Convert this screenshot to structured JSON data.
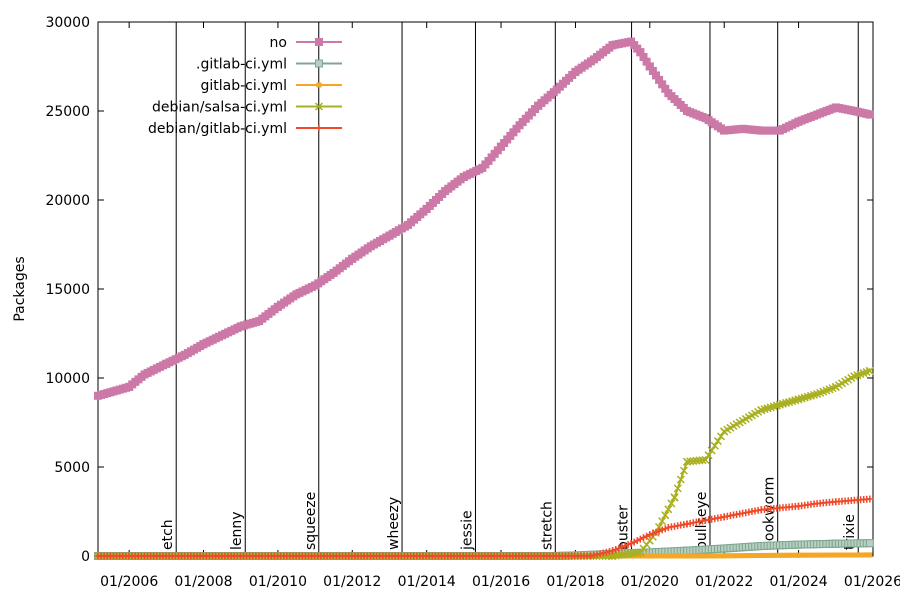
{
  "chart_data": {
    "type": "line",
    "title": "",
    "xlabel": "",
    "ylabel": "Packages",
    "xlim": [
      "2005-03-01",
      "2026-01-01"
    ],
    "ylim": [
      0,
      30000
    ],
    "x_tick_labels": [
      "01/2006",
      "01/2008",
      "01/2010",
      "01/2012",
      "01/2014",
      "01/2016",
      "01/2018",
      "01/2020",
      "01/2022",
      "01/2024",
      "01/2026"
    ],
    "y_ticks": [
      0,
      5000,
      10000,
      15000,
      20000,
      25000,
      30000
    ],
    "grid": false,
    "legend_position": "top-left",
    "releases": [
      {
        "name": "etch",
        "date": "2007-04-08"
      },
      {
        "name": "lenny",
        "date": "2009-02-14"
      },
      {
        "name": "squeeze",
        "date": "2011-02-06"
      },
      {
        "name": "wheezy",
        "date": "2013-05-04"
      },
      {
        "name": "jessie",
        "date": "2015-04-25"
      },
      {
        "name": "stretch",
        "date": "2017-06-17"
      },
      {
        "name": "buster",
        "date": "2019-07-06"
      },
      {
        "name": "bullseye",
        "date": "2021-08-14"
      },
      {
        "name": "bookworm",
        "date": "2023-06-10"
      },
      {
        "name": "trixie",
        "date": "2025-08-09"
      }
    ],
    "series": [
      {
        "name": "no",
        "color": "#cc79a7",
        "marker": "square-filled",
        "points": [
          [
            "2005-03-01",
            9000
          ],
          [
            "2005-09-01",
            9300
          ],
          [
            "2006-01-01",
            9500
          ],
          [
            "2006-06-01",
            10200
          ],
          [
            "2007-01-01",
            10800
          ],
          [
            "2007-07-01",
            11300
          ],
          [
            "2008-01-01",
            11900
          ],
          [
            "2008-07-01",
            12400
          ],
          [
            "2009-01-01",
            12900
          ],
          [
            "2009-07-01",
            13200
          ],
          [
            "2010-01-01",
            14000
          ],
          [
            "2010-07-01",
            14700
          ],
          [
            "2011-01-01",
            15200
          ],
          [
            "2011-07-01",
            15900
          ],
          [
            "2012-01-01",
            16700
          ],
          [
            "2012-07-01",
            17400
          ],
          [
            "2013-01-01",
            18000
          ],
          [
            "2013-07-01",
            18600
          ],
          [
            "2014-01-01",
            19500
          ],
          [
            "2014-07-01",
            20500
          ],
          [
            "2015-01-01",
            21300
          ],
          [
            "2015-07-01",
            21800
          ],
          [
            "2016-01-01",
            23000
          ],
          [
            "2016-07-01",
            24200
          ],
          [
            "2017-01-01",
            25300
          ],
          [
            "2017-07-01",
            26200
          ],
          [
            "2018-01-01",
            27200
          ],
          [
            "2018-07-01",
            27900
          ],
          [
            "2019-01-01",
            28700
          ],
          [
            "2019-07-01",
            28900
          ],
          [
            "2019-10-01",
            28300
          ],
          [
            "2020-01-01",
            27500
          ],
          [
            "2020-07-01",
            26000
          ],
          [
            "2021-01-01",
            25000
          ],
          [
            "2021-07-01",
            24600
          ],
          [
            "2022-01-01",
            23900
          ],
          [
            "2022-07-01",
            24000
          ],
          [
            "2023-01-01",
            23900
          ],
          [
            "2023-07-01",
            23900
          ],
          [
            "2024-01-01",
            24400
          ],
          [
            "2024-07-01",
            24800
          ],
          [
            "2025-01-01",
            25200
          ],
          [
            "2025-07-01",
            25000
          ],
          [
            "2025-12-01",
            24800
          ]
        ]
      },
      {
        "name": ".gitlab-ci.yml",
        "color": "#7ea690",
        "marker": "square-open",
        "points": [
          [
            "2005-03-01",
            0
          ],
          [
            "2017-06-01",
            0
          ],
          [
            "2018-01-01",
            30
          ],
          [
            "2019-01-01",
            120
          ],
          [
            "2020-01-01",
            200
          ],
          [
            "2021-01-01",
            300
          ],
          [
            "2022-01-01",
            420
          ],
          [
            "2023-01-01",
            560
          ],
          [
            "2024-01-01",
            640
          ],
          [
            "2025-01-01",
            690
          ],
          [
            "2025-12-01",
            720
          ]
        ]
      },
      {
        "name": "gitlab-ci.yml",
        "color": "#f5a623",
        "marker": "square-small",
        "points": [
          [
            "2005-03-01",
            0
          ],
          [
            "2021-06-01",
            0
          ],
          [
            "2022-01-01",
            10
          ],
          [
            "2023-01-01",
            30
          ],
          [
            "2024-01-01",
            45
          ],
          [
            "2025-12-01",
            60
          ]
        ]
      },
      {
        "name": "debian/salsa-ci.yml",
        "color": "#a8b020",
        "marker": "x",
        "points": [
          [
            "2005-03-01",
            0
          ],
          [
            "2019-01-01",
            0
          ],
          [
            "2019-10-01",
            200
          ],
          [
            "2020-03-01",
            1300
          ],
          [
            "2020-09-01",
            3300
          ],
          [
            "2021-01-01",
            5300
          ],
          [
            "2021-07-01",
            5400
          ],
          [
            "2022-01-01",
            7000
          ],
          [
            "2022-07-01",
            7600
          ],
          [
            "2023-01-01",
            8200
          ],
          [
            "2023-07-01",
            8500
          ],
          [
            "2024-01-01",
            8800
          ],
          [
            "2024-07-01",
            9100
          ],
          [
            "2025-01-01",
            9500
          ],
          [
            "2025-07-01",
            10100
          ],
          [
            "2025-12-01",
            10400
          ]
        ]
      },
      {
        "name": "debian/gitlab-ci.yml",
        "color": "#f04a2a",
        "marker": "plus",
        "points": [
          [
            "2005-03-01",
            0
          ],
          [
            "2018-06-01",
            0
          ],
          [
            "2019-01-01",
            300
          ],
          [
            "2019-07-01",
            700
          ],
          [
            "2020-01-01",
            1200
          ],
          [
            "2020-07-01",
            1600
          ],
          [
            "2021-01-01",
            1800
          ],
          [
            "2021-07-01",
            2000
          ],
          [
            "2022-01-01",
            2200
          ],
          [
            "2022-07-01",
            2400
          ],
          [
            "2023-01-01",
            2600
          ],
          [
            "2023-07-01",
            2700
          ],
          [
            "2024-01-01",
            2800
          ],
          [
            "2024-07-01",
            2950
          ],
          [
            "2025-01-01",
            3050
          ],
          [
            "2025-12-01",
            3200
          ]
        ]
      }
    ]
  }
}
